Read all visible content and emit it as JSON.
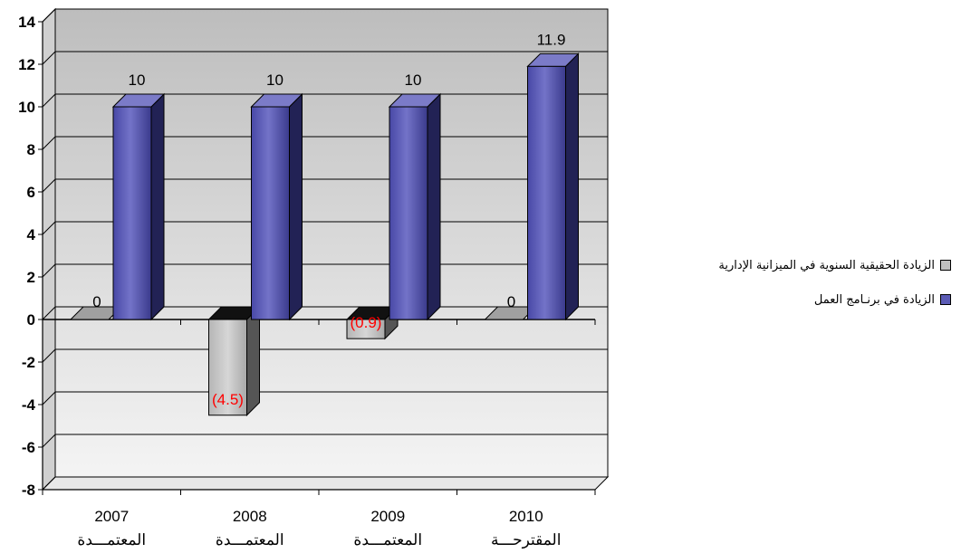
{
  "chart_data": {
    "type": "bar",
    "categories": [
      {
        "year": "2007",
        "label": "المعتمـــدة"
      },
      {
        "year": "2008",
        "label": "المعتمـــدة"
      },
      {
        "year": "2009",
        "label": "المعتمـــدة"
      },
      {
        "year": "2010",
        "label": "المقترحـــة"
      }
    ],
    "series": [
      {
        "name": "الزيادة الحقيقية السنوية في الميزانية الإدارية",
        "values": [
          0,
          -4.5,
          -0.9,
          0
        ],
        "labels": [
          "0",
          "(4.5)",
          "(0.9)",
          "0"
        ],
        "color": "#c0c0c0"
      },
      {
        "name": "الزيادة في برنـامج العمل",
        "values": [
          10,
          10,
          10,
          11.9
        ],
        "labels": [
          "10",
          "10",
          "10",
          "11.9"
        ],
        "color": "#5b5bb5"
      }
    ],
    "ylim": [
      -8,
      14
    ],
    "yticks": [
      "-8",
      "-6",
      "-4",
      "-2",
      "0",
      "2",
      "4",
      "6",
      "8",
      "10",
      "12",
      "14"
    ],
    "grid": true,
    "legend_position": "right",
    "three_d": true,
    "colors": {
      "back_wall_top": "#bdbdbd",
      "back_wall_bottom": "#f2f2f2",
      "negative_label": "#ff0000"
    }
  }
}
